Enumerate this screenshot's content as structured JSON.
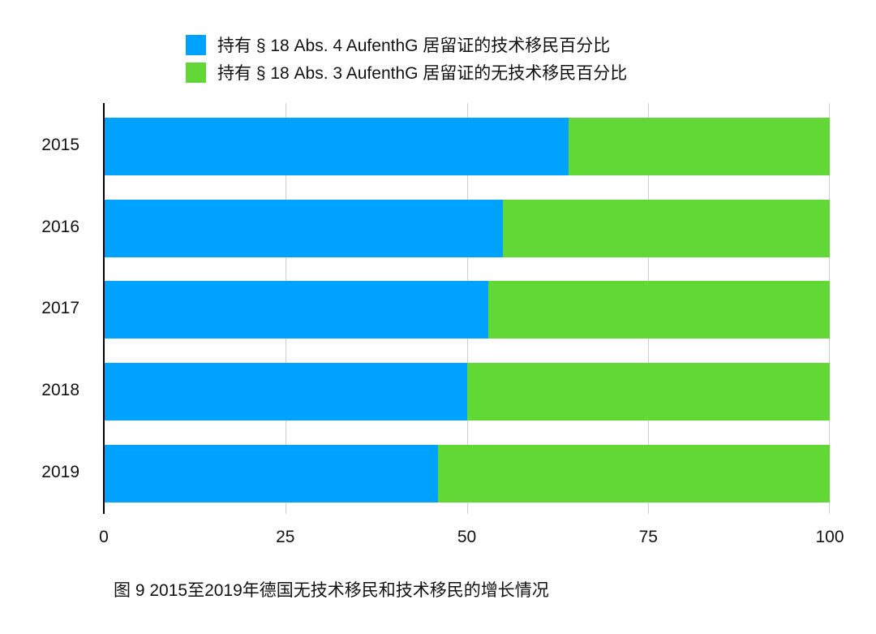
{
  "legend": [
    {
      "label": "持有 § 18 Abs. 4 AufenthG 居留证的技术移民百分比",
      "color": "#00A2FF"
    },
    {
      "label": "持有 § 18 Abs. 3 AufenthG 居留证的无技术移民百分比",
      "color": "#61D836"
    }
  ],
  "x_ticks": [
    "0",
    "25",
    "50",
    "75",
    "100"
  ],
  "caption": "图 9 2015至2019年德国无技术移民和技术移民的增长情况",
  "chart_data": {
    "type": "bar",
    "orientation": "horizontal",
    "stacked": true,
    "title": "",
    "caption": "图 9 2015至2019年德国无技术移民和技术移民的增长情况",
    "categories": [
      "2015",
      "2016",
      "2017",
      "2018",
      "2019"
    ],
    "series": [
      {
        "name": "持有 § 18 Abs. 4 AufenthG 居留证的技术移民百分比",
        "color": "#00A2FF",
        "values": [
          64,
          55,
          53,
          50,
          46
        ]
      },
      {
        "name": "持有 § 18 Abs. 3 AufenthG 居留证的无技术移民百分比",
        "color": "#61D836",
        "values": [
          36,
          45,
          47,
          50,
          54
        ]
      }
    ],
    "xlabel": "",
    "ylabel": "",
    "xlim": [
      0,
      100
    ],
    "x_ticks": [
      0,
      25,
      50,
      75,
      100
    ],
    "grid": "vertical",
    "legend_position": "top"
  }
}
